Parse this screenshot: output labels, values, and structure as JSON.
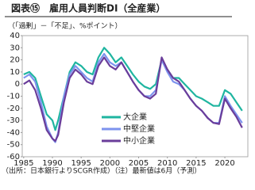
{
  "chart_data": {
    "type": "line",
    "title": "図表⑮　雇用人員判断DI（全産業）",
    "subtitle": "（「過剰」－「不足」、%ポイント）",
    "footnote": "（出所：日本銀行よりSCGR作成）（注）最新値は6月（予測）",
    "x": [
      1985,
      1986,
      1987,
      1988,
      1989,
      1990,
      1990.5,
      1991,
      1992,
      1993,
      1994,
      1995,
      1996,
      1997,
      1998,
      1999,
      2000,
      2001,
      2002,
      2003,
      2004,
      2005,
      2006,
      2007,
      2008,
      2009,
      2010,
      2011,
      2012,
      2013,
      2014,
      2015,
      2016,
      2017,
      2018,
      2019,
      2020,
      2021,
      2022,
      2023
    ],
    "series": [
      {
        "name": "大企業",
        "color": "#1fb5a0",
        "values": [
          8,
          10,
          5,
          -10,
          -25,
          -30,
          -38,
          -30,
          -10,
          10,
          18,
          15,
          10,
          8,
          22,
          30,
          25,
          18,
          22,
          15,
          8,
          2,
          -2,
          -4,
          0,
          20,
          12,
          5,
          5,
          0,
          -5,
          -10,
          -12,
          -15,
          -18,
          -18,
          -5,
          -8,
          -15,
          -22
        ]
      },
      {
        "name": "中堅企業",
        "color": "#7d93ee",
        "values": [
          5,
          8,
          2,
          -15,
          -35,
          -45,
          -48,
          -40,
          -10,
          8,
          15,
          10,
          5,
          2,
          18,
          25,
          18,
          15,
          18,
          10,
          2,
          -5,
          -10,
          -10,
          -5,
          20,
          10,
          2,
          0,
          -5,
          -12,
          -18,
          -22,
          -28,
          -32,
          -32,
          -10,
          -18,
          -25,
          -32
        ]
      },
      {
        "name": "中小企業",
        "color": "#6a3d9a",
        "values": [
          0,
          3,
          -5,
          -20,
          -38,
          -45,
          -47,
          -42,
          -15,
          5,
          12,
          8,
          2,
          0,
          15,
          22,
          15,
          12,
          18,
          10,
          2,
          -5,
          -10,
          -12,
          -8,
          22,
          12,
          5,
          2,
          -5,
          -12,
          -18,
          -22,
          -28,
          -32,
          -33,
          -12,
          -20,
          -27,
          -36
        ]
      }
    ],
    "xlim": [
      1984.75,
      2024
    ],
    "xticks": [
      1985,
      1990,
      1995,
      2000,
      2005,
      2010,
      2015,
      2020
    ],
    "ylim": [
      -60,
      40
    ],
    "yticks": [
      40,
      30,
      20,
      10,
      0,
      -10,
      -20,
      -30,
      -40,
      -50,
      -60
    ]
  }
}
